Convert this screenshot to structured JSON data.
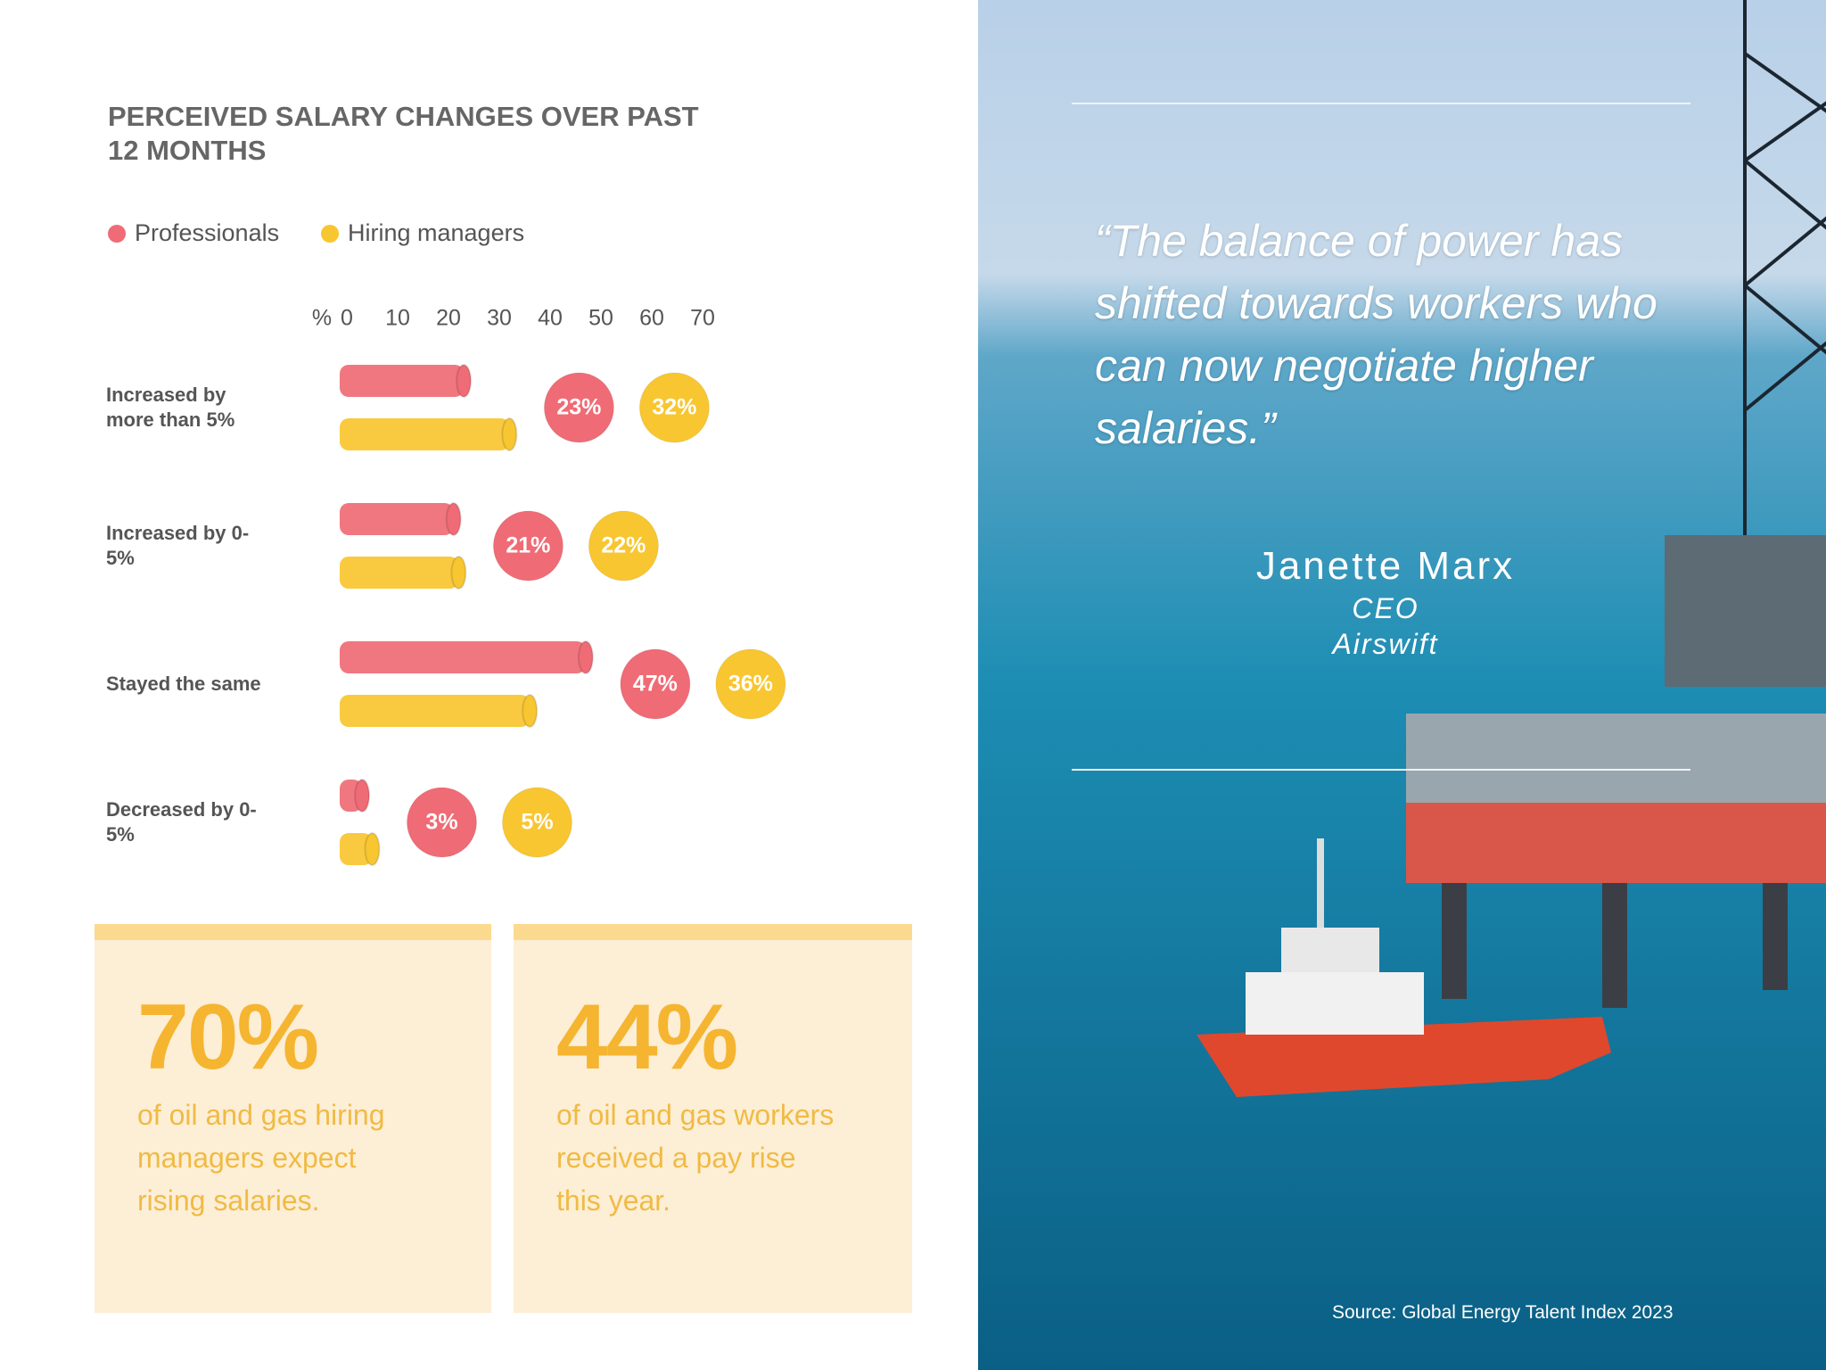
{
  "chart_data": {
    "type": "bar",
    "title": "PERCEIVED SALARY CHANGES OVER PAST 12 MONTHS",
    "xlabel": "%",
    "categories": [
      "Increased by more than 5%",
      "Increased by 0-5%",
      "Stayed the same",
      "Decreased by 0-5%"
    ],
    "series": [
      {
        "name": "Professionals",
        "color": "#ef6b75",
        "values": [
          23,
          21,
          47,
          3
        ],
        "value_labels": [
          "23%",
          "21%",
          "47%",
          "3%"
        ]
      },
      {
        "name": "Hiring managers",
        "color": "#f8c630",
        "values": [
          32,
          22,
          36,
          5
        ],
        "value_labels": [
          "32%",
          "22%",
          "36%",
          "5%"
        ]
      }
    ],
    "xlim": [
      0,
      70
    ],
    "xticks": [
      0,
      10,
      20,
      30,
      40,
      50,
      60,
      70
    ]
  },
  "stats": [
    {
      "value": "70%",
      "text": "of oil and gas hiring managers expect rising salaries."
    },
    {
      "value": "44%",
      "text": "of oil and gas workers received a pay rise this year."
    }
  ],
  "quote": {
    "text": "“The balance of power has shifted towards workers who can now negotiate higher salaries.”",
    "name": "Janette Marx",
    "role": "CEO",
    "company": "Airswift"
  },
  "source": "Source: Global Energy Talent Index 2023"
}
